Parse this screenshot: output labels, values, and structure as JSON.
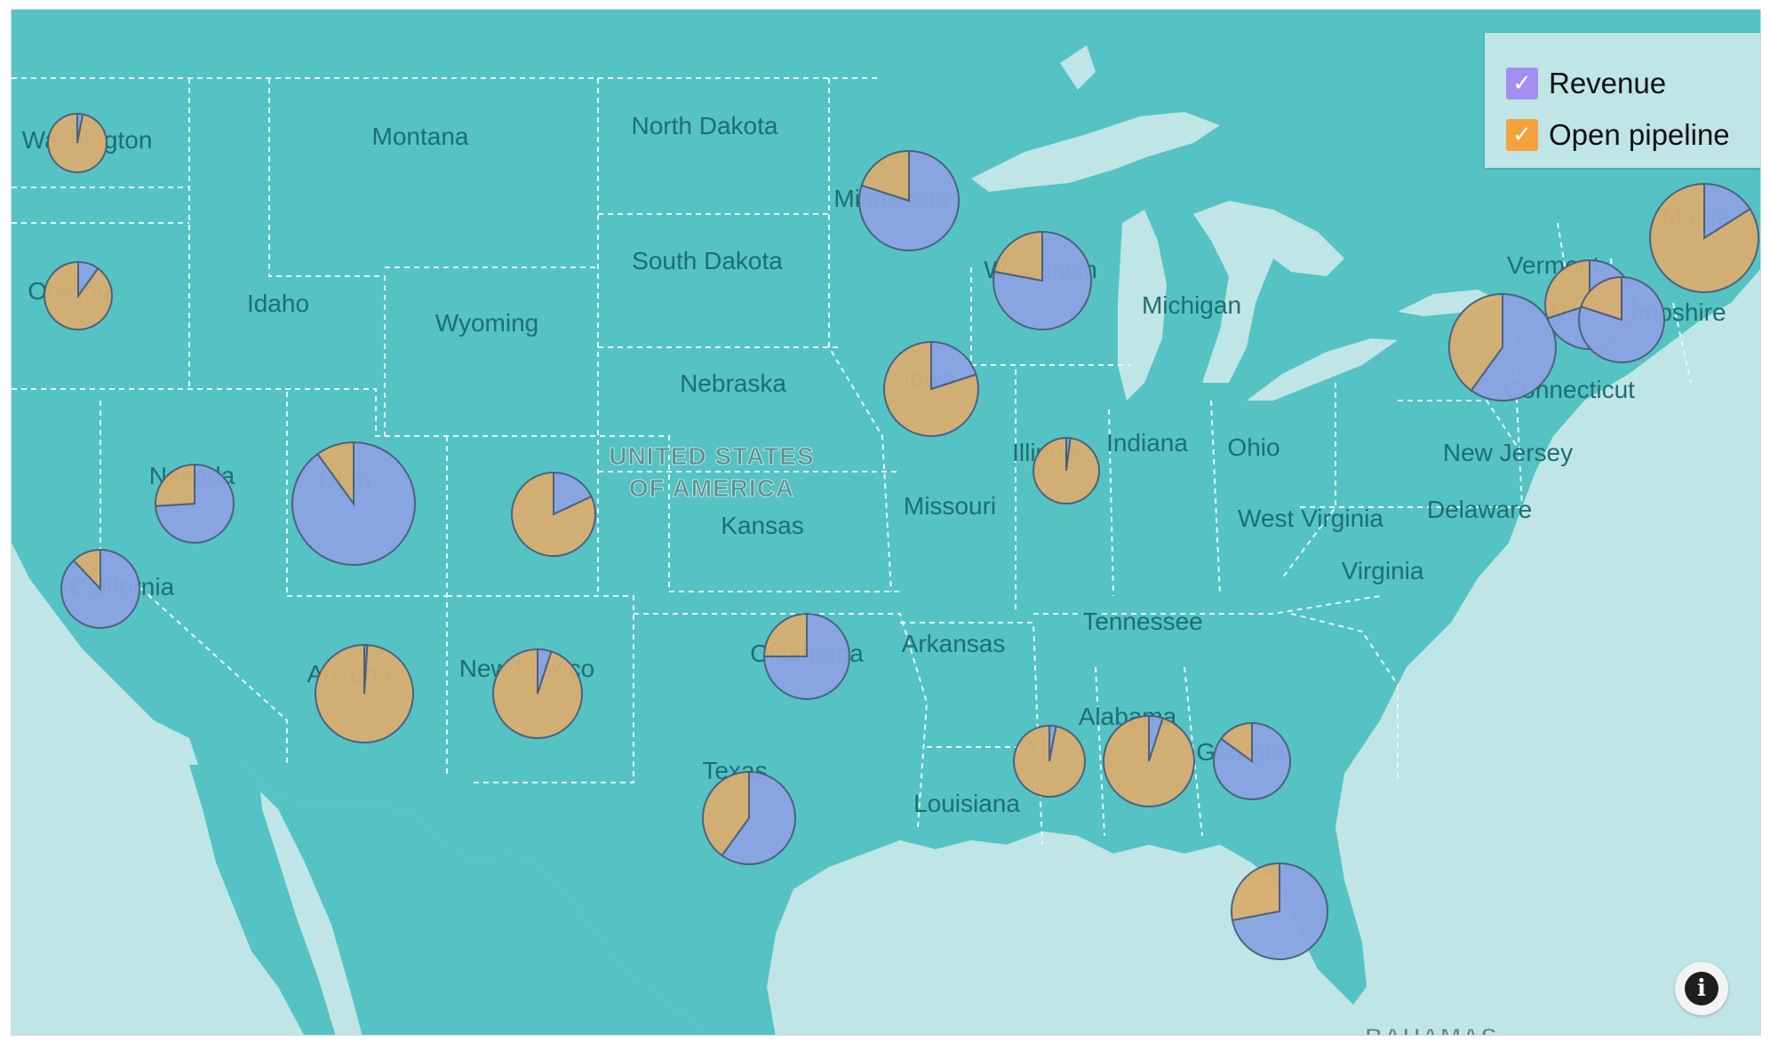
{
  "colors": {
    "land": "#55c3c3",
    "water": "#bfe5e6",
    "border": "#e6f7f7",
    "revenue": "#8ba4e3",
    "open_pipeline": "#d8ae70",
    "pie_stroke": "#4b5d7a",
    "legend_revenue_box": "#a48ff0",
    "legend_pipeline_box": "#f5a23d"
  },
  "legend": {
    "items": [
      {
        "label": "Revenue",
        "checked": true,
        "icon": "checkmark-icon"
      },
      {
        "label": "Open pipeline",
        "checked": true,
        "icon": "checkmark-icon"
      }
    ]
  },
  "country_label": {
    "line1": "UNITED STATES",
    "line2": "OF AMERICA"
  },
  "bottom_label": "BAHAMAS",
  "info_button": {
    "icon": "info-icon",
    "glyph": "i"
  },
  "state_labels": [
    "Washington",
    "Montana",
    "North Dakota",
    "Minnesota",
    "Oregon",
    "Idaho",
    "South Dakota",
    "Wyoming",
    "Wisconsin",
    "Michigan",
    "Vermont",
    "Maine",
    "New Hampshire",
    "Nebraska",
    "Iowa",
    "Connecticut",
    "Illinois",
    "Indiana",
    "Ohio",
    "New Jersey",
    "Nevada",
    "Utah",
    "Kansas",
    "Missouri",
    "West Virginia",
    "Delaware",
    "California",
    "Virginia",
    "Tennessee",
    "Oklahoma",
    "Arkansas",
    "Arizona",
    "New Mexico",
    "Alabama",
    "Georgia",
    "Texas",
    "Louisiana"
  ],
  "chart_data": {
    "type": "pie-map",
    "series": [
      "Revenue",
      "Open pipeline"
    ],
    "points": [
      {
        "state": "Washington",
        "revenue_share": 0.03
      },
      {
        "state": "Oregon",
        "revenue_share": 0.1
      },
      {
        "state": "Minnesota",
        "revenue_share": 0.8
      },
      {
        "state": "Wisconsin",
        "revenue_share": 0.78
      },
      {
        "state": "Iowa",
        "revenue_share": 0.2
      },
      {
        "state": "Illinois",
        "revenue_share": 0.02
      },
      {
        "state": "Nevada",
        "revenue_share": 0.74
      },
      {
        "state": "Utah",
        "revenue_share": 0.9
      },
      {
        "state": "Colorado",
        "revenue_share": 0.18
      },
      {
        "state": "California",
        "revenue_share": 0.88
      },
      {
        "state": "Arizona",
        "revenue_share": 0.01
      },
      {
        "state": "New Mexico",
        "revenue_share": 0.05
      },
      {
        "state": "Oklahoma",
        "revenue_share": 0.75
      },
      {
        "state": "Texas",
        "revenue_share": 0.6
      },
      {
        "state": "Mississippi",
        "revenue_share": 0.03
      },
      {
        "state": "Alabama",
        "revenue_share": 0.05
      },
      {
        "state": "Georgia",
        "revenue_share": 0.85
      },
      {
        "state": "Florida",
        "revenue_share": 0.72
      },
      {
        "state": "New York",
        "revenue_share": 0.6
      },
      {
        "state": "Vermont",
        "revenue_share": 0.7
      },
      {
        "state": "New Hampshire",
        "revenue_share": 0.8
      },
      {
        "state": "Maine",
        "revenue_share": 0.16
      }
    ]
  }
}
